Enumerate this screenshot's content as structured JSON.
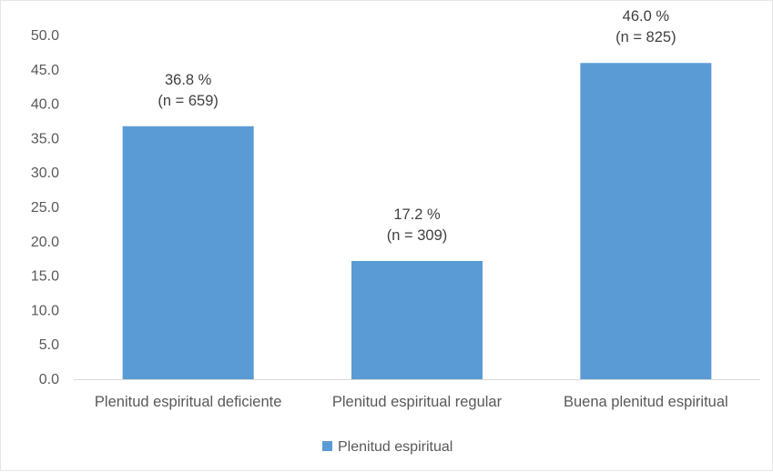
{
  "chart_data": {
    "type": "bar",
    "categories": [
      "Plenitud espiritual deficiente",
      "Plenitud espiritual regular",
      "Buena plenitud espiritual"
    ],
    "series": [
      {
        "name": "Plenitud espiritual",
        "values": [
          36.8,
          17.2,
          46.0
        ],
        "color": "#5b9bd5"
      }
    ],
    "data_labels": [
      [
        "36.8 %",
        "(n = 659)"
      ],
      [
        "17.2 %",
        "(n = 309)"
      ],
      [
        "46.0 %",
        "(n = 825)"
      ]
    ],
    "y_ticks": [
      "0.0",
      "5.0",
      "10.0",
      "15.0",
      "20.0",
      "25.0",
      "30.0",
      "35.0",
      "40.0",
      "45.0",
      "50.0"
    ],
    "ylim": [
      0,
      50
    ],
    "title": "",
    "xlabel": "",
    "ylabel": "",
    "grid": false,
    "legend_position": "bottom"
  }
}
